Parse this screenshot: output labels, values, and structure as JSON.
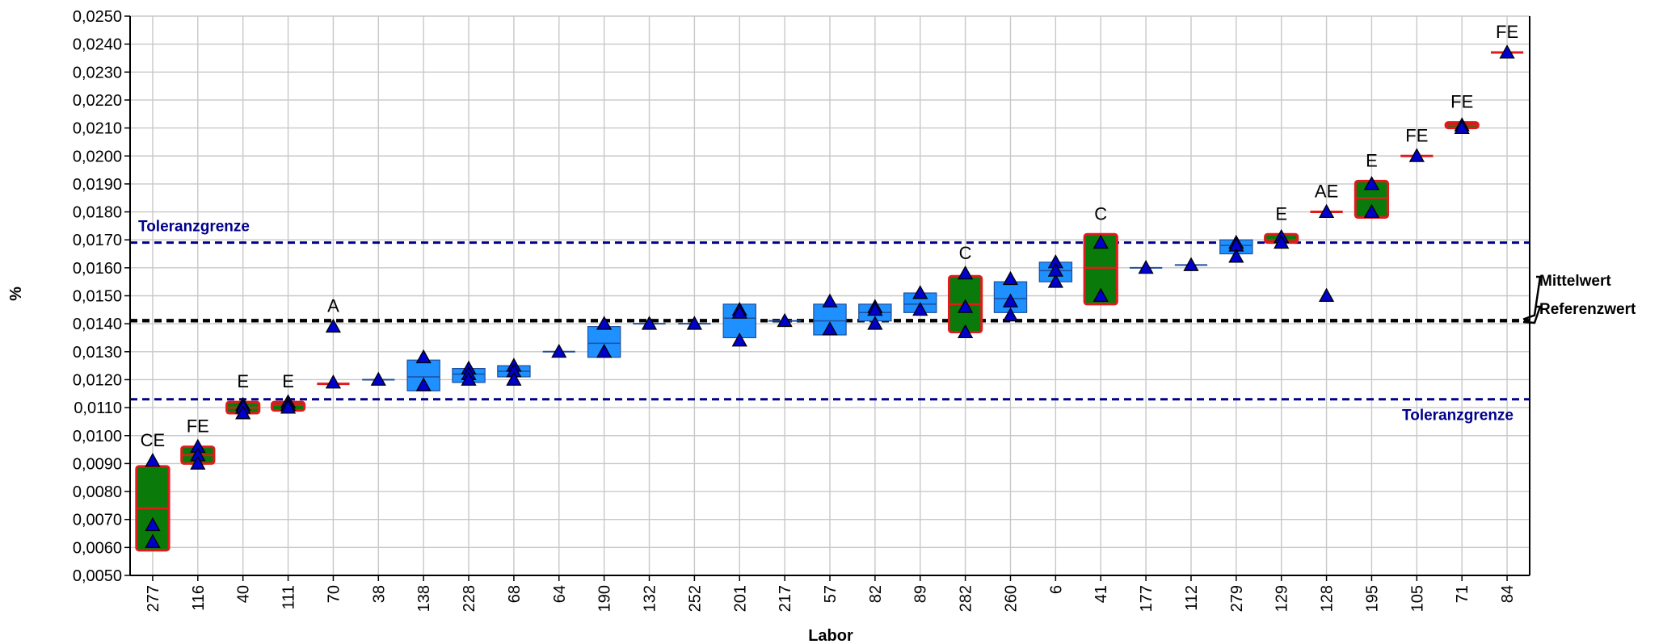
{
  "chart_data": {
    "type": "box",
    "xlabel": "Labor",
    "ylabel": "%",
    "ylim": [
      0.005,
      0.025
    ],
    "ytick_step": 0.001,
    "grid": true,
    "y_decimal_separator": ",",
    "y_decimals": 4,
    "reference_lines": [
      {
        "key": "tol_upper",
        "label": "Toleranzgrenze",
        "value": 0.0169,
        "style": "dashed",
        "color": "#00008b"
      },
      {
        "key": "tol_lower",
        "label": "Toleranzgrenze",
        "value": 0.0113,
        "style": "dashed",
        "color": "#00008b"
      },
      {
        "key": "mittelwert",
        "label": "Mittelwert",
        "value": 0.01413,
        "style": "dashed",
        "color": "#000000"
      },
      {
        "key": "referenzwert",
        "label": "Referenzwert",
        "value": 0.01409,
        "style": "dashed",
        "color": "#000000"
      }
    ],
    "colors": {
      "box_normal": "#1e90ff",
      "box_normal_edge": "#1f4e9a",
      "box_flagged_fill": "#0a7a0a",
      "box_flagged_edge": "#e31a1c",
      "median_flagged": "#e31a1c",
      "marker": "#0000cd",
      "grid": "#c8c8c8"
    },
    "labs": [
      {
        "lab": "277",
        "flag": "CE",
        "low": 0.0059,
        "high": 0.0089,
        "median": 0.0074,
        "values": [
          0.0091,
          0.0068,
          0.0062
        ],
        "flagged": true
      },
      {
        "lab": "116",
        "flag": "FE",
        "low": 0.009,
        "high": 0.0096,
        "median": 0.0093,
        "values": [
          0.0096,
          0.0093,
          0.009
        ],
        "flagged": true
      },
      {
        "lab": "40",
        "flag": "E",
        "low": 0.0108,
        "high": 0.0112,
        "median": 0.011,
        "values": [
          0.0111,
          0.011,
          0.0108
        ],
        "flagged": true
      },
      {
        "lab": "111",
        "flag": "E",
        "low": 0.0109,
        "high": 0.0112,
        "median": 0.0111,
        "values": [
          0.0112,
          0.0111,
          0.011
        ],
        "flagged": true
      },
      {
        "lab": "70",
        "flag": "A",
        "low": 0.01185,
        "high": 0.01185,
        "median": 0.01185,
        "values": [
          0.0139,
          0.0119
        ],
        "flagged": true
      },
      {
        "lab": "38",
        "flag": "",
        "low": 0.012,
        "high": 0.012,
        "median": 0.012,
        "values": [
          0.012
        ],
        "flagged": false
      },
      {
        "lab": "138",
        "flag": "",
        "low": 0.0116,
        "high": 0.0127,
        "median": 0.0121,
        "values": [
          0.0128,
          0.0118
        ],
        "flagged": false
      },
      {
        "lab": "228",
        "flag": "",
        "low": 0.0119,
        "high": 0.0124,
        "median": 0.0122,
        "values": [
          0.0124,
          0.0122,
          0.012
        ],
        "flagged": false
      },
      {
        "lab": "68",
        "flag": "",
        "low": 0.0121,
        "high": 0.0125,
        "median": 0.0123,
        "values": [
          0.0125,
          0.0123,
          0.012
        ],
        "flagged": false
      },
      {
        "lab": "64",
        "flag": "",
        "low": 0.013,
        "high": 0.013,
        "median": 0.013,
        "values": [
          0.013
        ],
        "flagged": false
      },
      {
        "lab": "190",
        "flag": "",
        "low": 0.0128,
        "high": 0.0139,
        "median": 0.0133,
        "values": [
          0.014,
          0.013
        ],
        "flagged": false
      },
      {
        "lab": "132",
        "flag": "",
        "low": 0.014,
        "high": 0.014,
        "median": 0.014,
        "values": [
          0.014
        ],
        "flagged": false
      },
      {
        "lab": "252",
        "flag": "",
        "low": 0.014,
        "high": 0.014,
        "median": 0.014,
        "values": [
          0.014
        ],
        "flagged": false
      },
      {
        "lab": "201",
        "flag": "",
        "low": 0.0135,
        "high": 0.0147,
        "median": 0.0142,
        "values": [
          0.0145,
          0.0144,
          0.0134
        ],
        "flagged": false
      },
      {
        "lab": "217",
        "flag": "",
        "low": 0.0141,
        "high": 0.0141,
        "median": 0.0141,
        "values": [
          0.0141
        ],
        "flagged": false
      },
      {
        "lab": "57",
        "flag": "",
        "low": 0.0136,
        "high": 0.0147,
        "median": 0.0141,
        "values": [
          0.0148,
          0.0138
        ],
        "flagged": false
      },
      {
        "lab": "82",
        "flag": "",
        "low": 0.0141,
        "high": 0.0147,
        "median": 0.0144,
        "values": [
          0.0146,
          0.0145,
          0.014
        ],
        "flagged": false
      },
      {
        "lab": "89",
        "flag": "",
        "low": 0.0144,
        "high": 0.0151,
        "median": 0.0147,
        "values": [
          0.0151,
          0.0145
        ],
        "flagged": false
      },
      {
        "lab": "282",
        "flag": "C",
        "low": 0.0137,
        "high": 0.0157,
        "median": 0.0147,
        "values": [
          0.0158,
          0.0146,
          0.0137
        ],
        "flagged": true
      },
      {
        "lab": "260",
        "flag": "",
        "low": 0.0144,
        "high": 0.0155,
        "median": 0.0149,
        "values": [
          0.0156,
          0.0148,
          0.0143
        ],
        "flagged": false
      },
      {
        "lab": "6",
        "flag": "",
        "low": 0.0155,
        "high": 0.0162,
        "median": 0.0159,
        "values": [
          0.0162,
          0.0159,
          0.0155
        ],
        "flagged": false
      },
      {
        "lab": "41",
        "flag": "C",
        "low": 0.0147,
        "high": 0.0172,
        "median": 0.016,
        "values": [
          0.0169,
          0.015
        ],
        "flagged": true
      },
      {
        "lab": "177",
        "flag": "",
        "low": 0.016,
        "high": 0.016,
        "median": 0.016,
        "values": [
          0.016
        ],
        "flagged": false
      },
      {
        "lab": "112",
        "flag": "",
        "low": 0.0161,
        "high": 0.0161,
        "median": 0.0161,
        "values": [
          0.0161
        ],
        "flagged": false
      },
      {
        "lab": "279",
        "flag": "",
        "low": 0.0165,
        "high": 0.017,
        "median": 0.0168,
        "values": [
          0.0169,
          0.0168,
          0.0164
        ],
        "flagged": false
      },
      {
        "lab": "129",
        "flag": "E",
        "low": 0.0169,
        "high": 0.0172,
        "median": 0.017,
        "values": [
          0.0171,
          0.0169
        ],
        "flagged": true
      },
      {
        "lab": "128",
        "flag": "AE",
        "low": 0.018,
        "high": 0.018,
        "median": 0.018,
        "values": [
          0.018,
          0.015
        ],
        "flagged": true
      },
      {
        "lab": "195",
        "flag": "E",
        "low": 0.0178,
        "high": 0.0191,
        "median": 0.0185,
        "values": [
          0.019,
          0.018
        ],
        "flagged": true
      },
      {
        "lab": "105",
        "flag": "FE",
        "low": 0.02,
        "high": 0.02,
        "median": 0.02,
        "values": [
          0.02
        ],
        "flagged": true
      },
      {
        "lab": "71",
        "flag": "FE",
        "low": 0.021,
        "high": 0.0212,
        "median": 0.0211,
        "values": [
          0.0211,
          0.021
        ],
        "flagged": true
      },
      {
        "lab": "84",
        "flag": "FE",
        "low": 0.0237,
        "high": 0.0237,
        "median": 0.0237,
        "values": [
          0.0237
        ],
        "flagged": true
      }
    ]
  }
}
